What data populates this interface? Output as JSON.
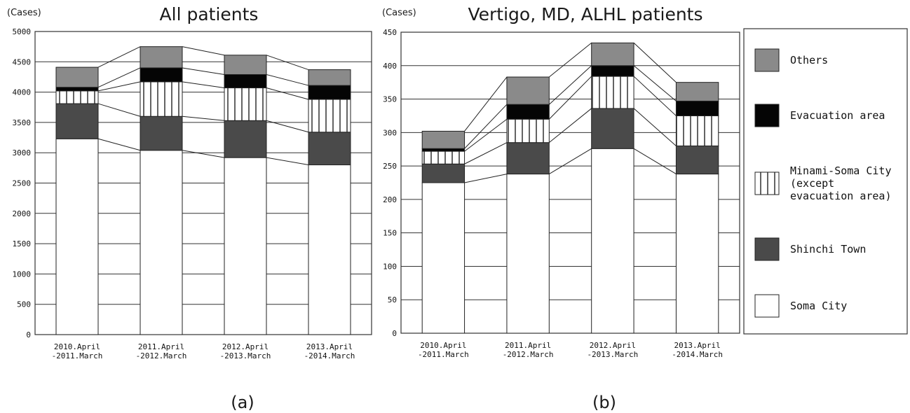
{
  "colors": {
    "Others": "#8a8a8a",
    "Evacuation area": "#050505",
    "Minami-Soma City (except evacuation area)": "vstripes",
    "Shinchi Town": "#4a4a4a",
    "Soma City": "#ffffff"
  },
  "legend": {
    "items": [
      {
        "key": "Others",
        "lines": [
          "Others"
        ]
      },
      {
        "key": "Evacuation area",
        "lines": [
          "Evacuation area"
        ]
      },
      {
        "key": "Minami-Soma City (except evacuation area)",
        "lines": [
          "Minami-Soma City",
          "(except",
          "evacuation area)"
        ]
      },
      {
        "key": "Shinchi Town",
        "lines": [
          "Shinchi Town"
        ]
      },
      {
        "key": "Soma City",
        "lines": [
          "Soma City"
        ]
      }
    ]
  },
  "chart_data": [
    {
      "type": "bar",
      "stacked": true,
      "panel_label": "(a)",
      "title": "All patients",
      "unit_label": "(Cases)",
      "categories": [
        [
          "2010.April",
          "-2011.March"
        ],
        [
          "2011.April",
          "-2012.March"
        ],
        [
          "2012.April",
          "-2013.March"
        ],
        [
          "2013.April",
          "-2014.March"
        ]
      ],
      "ylim": [
        0,
        5000
      ],
      "yticks": [
        0,
        500,
        1000,
        1500,
        2000,
        2500,
        3000,
        3500,
        4000,
        4500,
        5000
      ],
      "grid": true,
      "series": [
        {
          "name": "Soma City",
          "values": [
            3230,
            3040,
            2920,
            2800
          ]
        },
        {
          "name": "Shinchi Town",
          "values": [
            580,
            560,
            610,
            540
          ]
        },
        {
          "name": "Minami-Soma City (except evacuation area)",
          "values": [
            210,
            570,
            540,
            540
          ]
        },
        {
          "name": "Evacuation area",
          "values": [
            60,
            230,
            220,
            230
          ]
        },
        {
          "name": "Others",
          "values": [
            330,
            350,
            320,
            260
          ]
        }
      ]
    },
    {
      "type": "bar",
      "stacked": true,
      "panel_label": "(b)",
      "title": "Vertigo, MD, ALHL patients",
      "unit_label": "(Cases)",
      "categories": [
        [
          "2010.April",
          "-2011.March"
        ],
        [
          "2011.April",
          "-2012.March"
        ],
        [
          "2012.April",
          "-2013.March"
        ],
        [
          "2013.April",
          "-2014.March"
        ]
      ],
      "ylim": [
        0,
        450
      ],
      "yticks": [
        0,
        50,
        100,
        150,
        200,
        250,
        300,
        350,
        400,
        450
      ],
      "grid": true,
      "series": [
        {
          "name": "Soma City",
          "values": [
            225,
            238,
            276,
            238
          ]
        },
        {
          "name": "Shinchi Town",
          "values": [
            28,
            47,
            60,
            42
          ]
        },
        {
          "name": "Minami-Soma City (except evacuation area)",
          "values": [
            19,
            35,
            48,
            45
          ]
        },
        {
          "name": "Evacuation area",
          "values": [
            4,
            22,
            16,
            22
          ]
        },
        {
          "name": "Others",
          "values": [
            26,
            41,
            34,
            28
          ]
        }
      ]
    }
  ]
}
